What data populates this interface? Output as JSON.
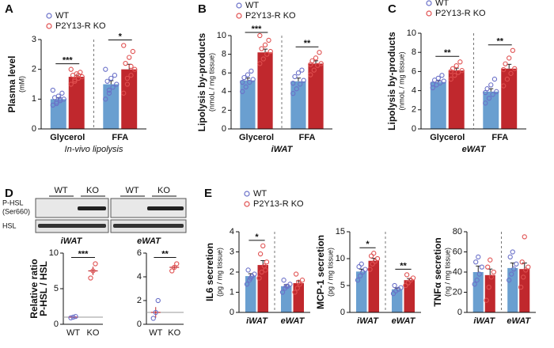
{
  "chart_data": [
    {
      "type": "bar",
      "panel": "A",
      "ylabel": "Plasma level",
      "yunit": "(mM)",
      "categories": [
        "Glycerol",
        "FFA"
      ],
      "xlabel": "In-vivo lipolysis",
      "ylim": [
        0,
        3
      ],
      "yticks": [
        0,
        1,
        2,
        3
      ],
      "legend": "upper left",
      "significance": [
        "***",
        "*"
      ],
      "series": [
        {
          "name": "WT",
          "color": "#6a9fd0",
          "point_color": "#6a70c8",
          "values": [
            1.0,
            1.5
          ],
          "errors": [
            0.05,
            0.12
          ],
          "points": [
            [
              0.8,
              0.9,
              0.95,
              1.0,
              1.05,
              1.1,
              1.2,
              1.3,
              0.85,
              1.0
            ],
            [
              1.0,
              1.2,
              1.4,
              1.5,
              1.6,
              1.7,
              1.8,
              2.0,
              1.3
            ]
          ]
        },
        {
          "name": "P2Y13-R KO",
          "color": "#c0282d",
          "point_color": "#e05050",
          "values": [
            1.75,
            2.0
          ],
          "errors": [
            0.05,
            0.17
          ],
          "points": [
            [
              1.5,
              1.6,
              1.7,
              1.75,
              1.8,
              1.85,
              1.9,
              2.0,
              1.65,
              1.8
            ],
            [
              1.2,
              1.5,
              1.8,
              2.0,
              2.2,
              2.4,
              2.6,
              2.8,
              1.7,
              2.1
            ]
          ]
        }
      ]
    },
    {
      "type": "bar",
      "panel": "B",
      "ylabel": "Lipolysis by-products",
      "yunit": "(nmoL / mg tissue)",
      "categories": [
        "Glycerol",
        "FFA"
      ],
      "xlabel": "iWAT",
      "ylim": [
        0,
        10
      ],
      "yticks": [
        0,
        2,
        4,
        6,
        8,
        10
      ],
      "legend": "upper left",
      "significance": [
        "***",
        "**"
      ],
      "series": [
        {
          "name": "WT",
          "color": "#6a9fd0",
          "point_color": "#6a70c8",
          "values": [
            5.2,
            5.1
          ],
          "errors": [
            0.25,
            0.35
          ],
          "points": [
            [
              4.0,
              4.5,
              5.0,
              5.3,
              5.5,
              5.8,
              6.2,
              5.0
            ],
            [
              3.8,
              4.3,
              4.8,
              5.2,
              5.6,
              6.0,
              6.3,
              4.9
            ]
          ]
        },
        {
          "name": "P2Y13-R KO",
          "color": "#c0282d",
          "point_color": "#e05050",
          "values": [
            8.2,
            7.0
          ],
          "errors": [
            0.35,
            0.3
          ],
          "points": [
            [
              7.0,
              7.5,
              8.0,
              8.3,
              8.6,
              9.0,
              9.5,
              10.0
            ],
            [
              5.8,
              6.3,
              6.8,
              7.0,
              7.3,
              7.6,
              8.2,
              6.9
            ]
          ]
        }
      ]
    },
    {
      "type": "bar",
      "panel": "C",
      "ylabel": "Lipolysis by-products",
      "yunit": "(nmoL / mg tissue)",
      "categories": [
        "Glycerol",
        "FFA"
      ],
      "xlabel": "eWAT",
      "ylim": [
        0,
        10
      ],
      "yticks": [
        0,
        2,
        4,
        6,
        8,
        10
      ],
      "legend": "upper left",
      "significance": [
        "**",
        "**"
      ],
      "series": [
        {
          "name": "WT",
          "color": "#6a9fd0",
          "point_color": "#6a70c8",
          "values": [
            4.9,
            3.9
          ],
          "errors": [
            0.15,
            0.3
          ],
          "points": [
            [
              4.3,
              4.6,
              4.8,
              5.0,
              5.1,
              5.3,
              5.6,
              4.7
            ],
            [
              2.7,
              3.2,
              3.6,
              3.9,
              4.2,
              4.6,
              5.2,
              3.8
            ]
          ]
        },
        {
          "name": "P2Y13-R KO",
          "color": "#c0282d",
          "point_color": "#e05050",
          "values": [
            6.1,
            6.3
          ],
          "errors": [
            0.25,
            0.45
          ],
          "points": [
            [
              5.2,
              5.6,
              5.9,
              6.1,
              6.3,
              6.6,
              7.0,
              6.0
            ],
            [
              4.5,
              5.2,
              5.8,
              6.3,
              6.8,
              7.4,
              8.2,
              6.2
            ]
          ]
        }
      ]
    },
    {
      "type": "dotplot",
      "panel": "D",
      "ylabel": "Relative ratio",
      "yunit": "P-HSL / HSL",
      "categories": [
        "WT",
        "KO"
      ],
      "ylim": [
        0,
        10
      ],
      "yticks": [
        0,
        5,
        10
      ],
      "hline": 1,
      "significance": "***",
      "color": "#c0282d",
      "point_colors": [
        "#6a70c8",
        "#e05050"
      ],
      "values": [
        1.0,
        7.5
      ],
      "errors": [
        0.1,
        0.6
      ],
      "points": [
        [
          0.9,
          1.0,
          1.1
        ],
        [
          6.5,
          7.5,
          8.5
        ]
      ]
    },
    {
      "type": "dotplot",
      "categories": [
        "WT",
        "KO"
      ],
      "ylim": [
        0,
        6
      ],
      "yticks": [
        0,
        2,
        4,
        6
      ],
      "hline": 1,
      "significance": "**",
      "color": "#c0282d",
      "point_colors": [
        "#6a70c8",
        "#e05050"
      ],
      "values": [
        1.0,
        4.8
      ],
      "errors": [
        0.45,
        0.2
      ],
      "points": [
        [
          0.5,
          1.0,
          2.0
        ],
        [
          4.5,
          4.8,
          5.1
        ]
      ]
    },
    {
      "type": "bar",
      "panel": "E",
      "ylabel": "IL6 secretion",
      "yunit": "(pg / mg tissue)",
      "categories": [
        "iWAT",
        "eWAT"
      ],
      "ylim": [
        0,
        4
      ],
      "yticks": [
        0,
        1,
        2,
        3,
        4
      ],
      "legend": "upper left",
      "significance": [
        "*",
        null
      ],
      "series": [
        {
          "name": "WT",
          "color": "#6a9fd0",
          "point_color": "#6a70c8",
          "values": [
            1.8,
            1.3
          ],
          "errors": [
            0.12,
            0.08
          ],
          "points": [
            [
              1.4,
              1.6,
              1.8,
              1.9,
              2.1,
              1.7
            ],
            [
              1.0,
              1.2,
              1.3,
              1.4,
              1.6,
              1.3
            ]
          ]
        },
        {
          "name": "P2Y13-R KO",
          "color": "#c0282d",
          "point_color": "#e05050",
          "values": [
            2.35,
            1.45
          ],
          "errors": [
            0.22,
            0.12
          ],
          "points": [
            [
              1.7,
              2.0,
              2.3,
              2.5,
              2.9,
              3.3,
              2.1
            ],
            [
              1.0,
              1.2,
              1.4,
              1.6,
              1.9,
              1.5
            ]
          ]
        }
      ]
    },
    {
      "type": "bar",
      "ylabel": "MCP-1 secretion",
      "yunit": "(pg / mg tissue)",
      "categories": [
        "iWAT",
        "eWAT"
      ],
      "ylim": [
        0,
        15
      ],
      "yticks": [
        0,
        5,
        10,
        15
      ],
      "significance": [
        "*",
        "**"
      ],
      "series": [
        {
          "color": "#6a9fd0",
          "point_color": "#6a70c8",
          "values": [
            7.6,
            4.3
          ],
          "errors": [
            0.45,
            0.25
          ],
          "points": [
            [
              6.0,
              6.8,
              7.5,
              8.0,
              8.5,
              9.0
            ],
            [
              3.5,
              4.0,
              4.3,
              4.6,
              5.0
            ]
          ]
        },
        {
          "color": "#c0282d",
          "point_color": "#e05050",
          "values": [
            9.6,
            6.0
          ],
          "errors": [
            0.45,
            0.3
          ],
          "points": [
            [
              8.0,
              9.0,
              9.5,
              10.0,
              10.5,
              11.0
            ],
            [
              5.0,
              5.5,
              6.0,
              6.4,
              7.0
            ]
          ]
        }
      ]
    },
    {
      "type": "bar",
      "ylabel": "TNFα secretion",
      "yunit": "(ng / mg tissue)",
      "categories": [
        "iWAT",
        "eWAT"
      ],
      "ylim": [
        0,
        80
      ],
      "yticks": [
        0,
        20,
        40,
        60,
        80
      ],
      "series": [
        {
          "color": "#6a9fd0",
          "point_color": "#6a70c8",
          "values": [
            40,
            44
          ],
          "errors": [
            6,
            5
          ],
          "points": [
            [
              28,
              32,
              38,
              45,
              50,
              55
            ],
            [
              32,
              38,
              43,
              48,
              55,
              60
            ]
          ]
        },
        {
          "color": "#c0282d",
          "point_color": "#e05050",
          "values": [
            37,
            43
          ],
          "errors": [
            6,
            6
          ],
          "points": [
            [
              12,
              25,
              35,
              40,
              45,
              52
            ],
            [
              25,
              35,
              42,
              45,
              50,
              75
            ]
          ]
        }
      ]
    }
  ],
  "blot": {
    "lanes": [
      "WT",
      "KO",
      "WT",
      "KO"
    ],
    "rows": [
      "P-HSL",
      "(Ser660)",
      "HSL"
    ],
    "tissues": [
      "iWAT",
      "eWAT"
    ]
  }
}
